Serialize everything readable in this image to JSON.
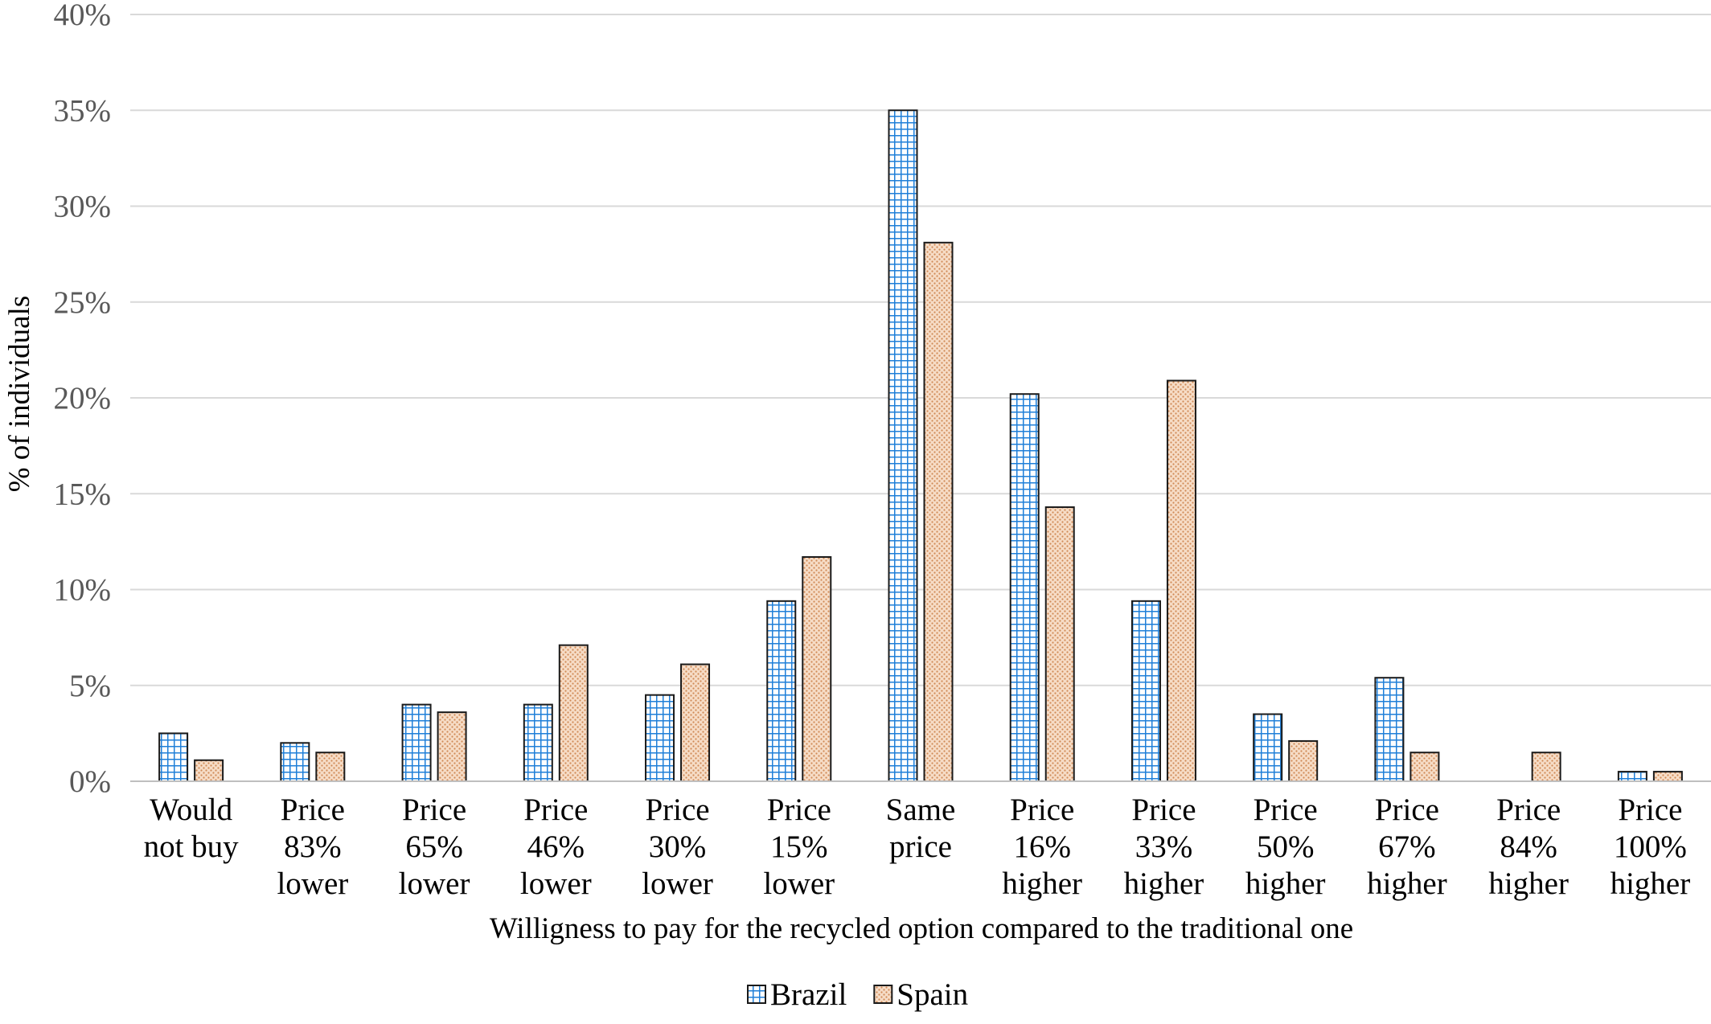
{
  "chart_data": {
    "type": "bar",
    "title": "",
    "xlabel": "Willigness to pay for the recycled option compared to the traditional one",
    "ylabel": "% of individuals",
    "ylim": [
      0,
      40
    ],
    "y_ticks": [
      "0%",
      "5%",
      "10%",
      "15%",
      "20%",
      "25%",
      "30%",
      "35%",
      "40%"
    ],
    "y_tick_values": [
      0,
      5,
      10,
      15,
      20,
      25,
      30,
      35,
      40
    ],
    "grid": true,
    "legend_position": "bottom-center",
    "categories": [
      [
        "Would",
        "not buy"
      ],
      [
        "Price",
        "83%",
        "lower"
      ],
      [
        "Price",
        "65%",
        "lower"
      ],
      [
        "Price",
        "46%",
        "lower"
      ],
      [
        "Price",
        "30%",
        "lower"
      ],
      [
        "Price",
        "15%",
        "lower"
      ],
      [
        "Same",
        "price"
      ],
      [
        "Price",
        "16%",
        "higher"
      ],
      [
        "Price",
        "33%",
        "higher"
      ],
      [
        "Price",
        "50%",
        "higher"
      ],
      [
        "Price",
        "67%",
        "higher"
      ],
      [
        "Price",
        "84%",
        "higher"
      ],
      [
        "Price",
        "100%",
        "higher"
      ]
    ],
    "series": [
      {
        "name": "Brazil",
        "pattern": "grid",
        "color": "#1f7fd8",
        "values": [
          2.5,
          2.0,
          4.0,
          4.0,
          4.5,
          9.4,
          35.0,
          20.2,
          9.4,
          3.5,
          5.4,
          0.0,
          0.5
        ]
      },
      {
        "name": "Spain",
        "pattern": "dots",
        "color": "#e8a878",
        "values": [
          1.1,
          1.5,
          3.6,
          7.1,
          6.1,
          11.7,
          28.1,
          14.3,
          20.9,
          2.1,
          1.5,
          1.5,
          0.5
        ]
      }
    ]
  }
}
